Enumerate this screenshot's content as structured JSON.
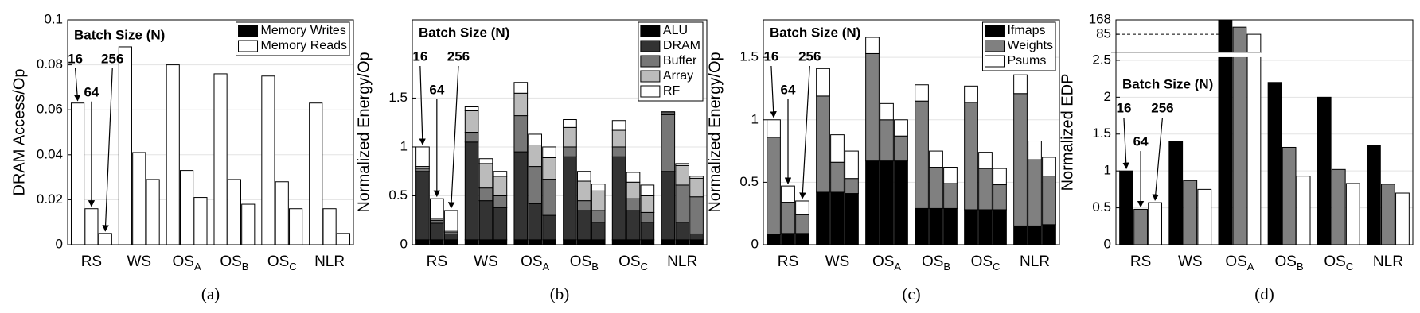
{
  "chart_data": [
    {
      "type": "stacked_bar",
      "ylabel": "DRAM Access/Op",
      "caption": "(a)",
      "annotation": "Batch Size (N)",
      "groups": [
        "16",
        "64",
        "256"
      ],
      "categories": [
        "RS",
        "WS",
        {
          "text": "OS",
          "sub": "A"
        },
        {
          "text": "OS",
          "sub": "B"
        },
        {
          "text": "OS",
          "sub": "C"
        },
        "NLR"
      ],
      "series": [
        {
          "name": "Memory Writes",
          "color": "#000000",
          "values": [
            [
              0,
              0,
              0
            ],
            [
              0,
              0,
              0
            ],
            [
              0,
              0,
              0
            ],
            [
              0,
              0,
              0
            ],
            [
              0,
              0,
              0
            ],
            [
              0,
              0,
              0
            ]
          ]
        },
        {
          "name": "Memory Reads",
          "color": "#ffffff",
          "values": [
            [
              0.063,
              0.016,
              0.005
            ],
            [
              0.088,
              0.041,
              0.029
            ],
            [
              0.08,
              0.033,
              0.021
            ],
            [
              0.076,
              0.029,
              0.018
            ],
            [
              0.075,
              0.028,
              0.016
            ],
            [
              0.063,
              0.016,
              0.005
            ]
          ]
        }
      ],
      "ylim": [
        0,
        0.1
      ],
      "yticks": [
        0,
        0.02,
        0.04,
        0.06,
        0.08,
        0.1
      ],
      "grid": true,
      "legend": "upper right"
    },
    {
      "type": "stacked_bar",
      "ylabel": "Normalized Energy/Op",
      "caption": "(b)",
      "annotation": "Batch Size (N)",
      "groups": [
        "16",
        "64",
        "256"
      ],
      "categories": [
        "RS",
        "WS",
        {
          "text": "OS",
          "sub": "A"
        },
        {
          "text": "OS",
          "sub": "B"
        },
        {
          "text": "OS",
          "sub": "C"
        },
        "NLR"
      ],
      "series": [
        {
          "name": "ALU",
          "color": "#000000",
          "values": [
            [
              0.05,
              0.05,
              0.05
            ],
            [
              0.05,
              0.05,
              0.05
            ],
            [
              0.05,
              0.05,
              0.05
            ],
            [
              0.05,
              0.05,
              0.05
            ],
            [
              0.05,
              0.05,
              0.05
            ],
            [
              0.05,
              0.05,
              0.05
            ]
          ]
        },
        {
          "name": "DRAM",
          "color": "#333333",
          "values": [
            [
              0.7,
              0.17,
              0.06
            ],
            [
              1.0,
              0.4,
              0.33
            ],
            [
              0.9,
              0.37,
              0.25
            ],
            [
              0.85,
              0.3,
              0.18
            ],
            [
              0.85,
              0.3,
              0.18
            ],
            [
              0.7,
              0.18,
              0.06
            ]
          ]
        },
        {
          "name": "Buffer",
          "color": "#777777",
          "values": [
            [
              0.03,
              0.03,
              0.02
            ],
            [
              0.1,
              0.13,
              0.12
            ],
            [
              0.37,
              0.38,
              0.37
            ],
            [
              0.1,
              0.1,
              0.12
            ],
            [
              0.1,
              0.12,
              0.1
            ],
            [
              0.58,
              0.38,
              0.38
            ]
          ]
        },
        {
          "name": "Array",
          "color": "#bbbbbb",
          "values": [
            [
              0.02,
              0.02,
              0.02
            ],
            [
              0.22,
              0.25,
              0.2
            ],
            [
              0.23,
              0.22,
              0.22
            ],
            [
              0.2,
              0.2,
              0.2
            ],
            [
              0.17,
              0.17,
              0.17
            ],
            [
              0.02,
              0.2,
              0.19
            ]
          ]
        },
        {
          "name": "RF",
          "color": "#ffffff",
          "values": [
            [
              0.2,
              0.2,
              0.2
            ],
            [
              0.04,
              0.05,
              0.05
            ],
            [
              0.11,
              0.11,
              0.11
            ],
            [
              0.08,
              0.1,
              0.07
            ],
            [
              0.1,
              0.1,
              0.11
            ],
            [
              0.01,
              0.02,
              0.02
            ]
          ]
        }
      ],
      "ylim": [
        0,
        2.3
      ],
      "yticks": [
        0,
        0.5,
        1,
        1.5
      ],
      "grid": true,
      "legend": "upper right"
    },
    {
      "type": "stacked_bar",
      "ylabel": "Normalized Energy/Op",
      "caption": "(c)",
      "annotation": "Batch Size (N)",
      "groups": [
        "16",
        "64",
        "256"
      ],
      "categories": [
        "RS",
        "WS",
        {
          "text": "OS",
          "sub": "A"
        },
        {
          "text": "OS",
          "sub": "B"
        },
        {
          "text": "OS",
          "sub": "C"
        },
        "NLR"
      ],
      "series": [
        {
          "name": "Ifmaps",
          "color": "#000000",
          "values": [
            [
              0.08,
              0.09,
              0.09
            ],
            [
              0.42,
              0.42,
              0.41
            ],
            [
              0.67,
              0.67,
              0.67
            ],
            [
              0.29,
              0.29,
              0.29
            ],
            [
              0.28,
              0.28,
              0.28
            ],
            [
              0.15,
              0.15,
              0.16
            ]
          ]
        },
        {
          "name": "Weights",
          "color": "#808080",
          "values": [
            [
              0.78,
              0.25,
              0.15
            ],
            [
              0.77,
              0.24,
              0.12
            ],
            [
              0.86,
              0.33,
              0.2
            ],
            [
              0.86,
              0.33,
              0.2
            ],
            [
              0.86,
              0.33,
              0.2
            ],
            [
              1.06,
              0.53,
              0.39
            ]
          ]
        },
        {
          "name": "Psums",
          "color": "#ffffff",
          "values": [
            [
              0.14,
              0.13,
              0.11
            ],
            [
              0.22,
              0.22,
              0.22
            ],
            [
              0.13,
              0.13,
              0.13
            ],
            [
              0.13,
              0.13,
              0.13
            ],
            [
              0.13,
              0.13,
              0.13
            ],
            [
              0.15,
              0.15,
              0.15
            ]
          ]
        }
      ],
      "ylim": [
        0,
        1.8
      ],
      "yticks": [
        0,
        0.5,
        1,
        1.5
      ],
      "grid": true,
      "legend": "upper right"
    },
    {
      "type": "bar",
      "ylabel": "Normalized EDP",
      "caption": "(d)",
      "annotation": "Batch Size (N)",
      "categories": [
        "RS",
        "WS",
        {
          "text": "OS",
          "sub": "A"
        },
        {
          "text": "OS",
          "sub": "B"
        },
        {
          "text": "OS",
          "sub": "C"
        },
        "NLR"
      ],
      "series": [
        {
          "name": "16",
          "color": "#000000",
          "values": [
            1.0,
            1.4,
            168,
            2.2,
            2.0,
            1.35
          ]
        },
        {
          "name": "64",
          "color": "#808080",
          "values": [
            0.48,
            0.87,
            126,
            1.32,
            1.02,
            0.82
          ]
        },
        {
          "name": "256",
          "color": "#ffffff",
          "values": [
            0.57,
            0.75,
            85,
            0.93,
            0.83,
            0.7
          ]
        }
      ],
      "ylim": [
        0,
        168
      ],
      "yticks": [
        0,
        0.5,
        1,
        1.5,
        2,
        2.5,
        85,
        168
      ],
      "axis_break": [
        2.5,
        85
      ],
      "grid": true
    }
  ]
}
